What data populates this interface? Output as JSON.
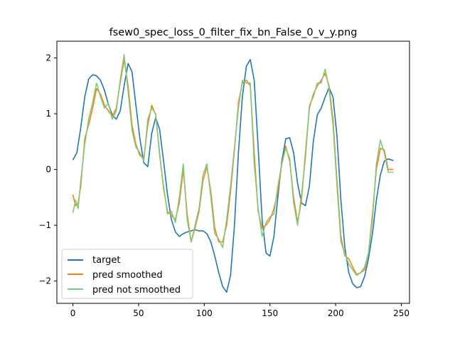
{
  "chart_data": {
    "type": "line",
    "title": "fsew0_spec_loss_0_filter_fix_bn_False_0_v_y.png",
    "xlabel": "",
    "ylabel": "",
    "xlim": [
      -12.2,
      256.2
    ],
    "ylim": [
      -2.4,
      2.3
    ],
    "xticks": [
      0,
      50,
      100,
      150,
      200,
      250
    ],
    "yticks": [
      -2,
      -1,
      0,
      1,
      2
    ],
    "grid": false,
    "legend_position": "lower left",
    "series": [
      {
        "name": "target",
        "color": "#1f77b4",
        "x": [
          0,
          3,
          6,
          9,
          12,
          15,
          18,
          21,
          24,
          27,
          30,
          33,
          36,
          39,
          42,
          45,
          48,
          51,
          54,
          57,
          60,
          63,
          66,
          69,
          72,
          75,
          78,
          81,
          84,
          87,
          90,
          93,
          96,
          99,
          102,
          105,
          108,
          111,
          114,
          117,
          120,
          123,
          126,
          129,
          132,
          135,
          138,
          141,
          144,
          147,
          150,
          153,
          156,
          159,
          162,
          165,
          168,
          171,
          174,
          177,
          180,
          183,
          186,
          189,
          192,
          195,
          198,
          201,
          204,
          207,
          210,
          213,
          216,
          219,
          222,
          225,
          228,
          231,
          234,
          237,
          240,
          244
        ],
        "y": [
          0.17,
          0.3,
          0.75,
          1.3,
          1.62,
          1.7,
          1.68,
          1.6,
          1.42,
          1.17,
          0.98,
          0.9,
          1.05,
          1.5,
          1.9,
          1.75,
          1.15,
          0.55,
          0.12,
          0.05,
          0.65,
          0.93,
          0.72,
          0.15,
          -0.45,
          -0.9,
          -1.12,
          -1.2,
          -1.15,
          -1.12,
          -1.1,
          -1.08,
          -1.1,
          -1.1,
          -1.15,
          -1.3,
          -1.55,
          -1.85,
          -2.1,
          -2.2,
          -1.9,
          -1.0,
          0.3,
          1.3,
          1.85,
          1.97,
          1.6,
          0.4,
          -0.9,
          -1.5,
          -1.55,
          -1.2,
          -0.5,
          0.15,
          0.55,
          0.57,
          0.3,
          -0.25,
          -0.6,
          -0.65,
          -0.3,
          0.5,
          0.98,
          1.1,
          1.3,
          1.47,
          1.3,
          0.6,
          -0.55,
          -1.4,
          -1.85,
          -2.05,
          -2.12,
          -2.1,
          -1.92,
          -1.6,
          -1.15,
          -0.55,
          -0.1,
          0.15,
          0.19,
          0.16
        ]
      },
      {
        "name": "pred smoothed",
        "color": "#ff7f0e",
        "x": [
          0,
          2,
          4,
          6,
          9,
          12,
          15,
          18,
          21,
          24,
          27,
          30,
          33,
          36,
          39,
          42,
          45,
          48,
          51,
          54,
          57,
          60,
          63,
          66,
          69,
          72,
          75,
          78,
          81,
          84,
          87,
          90,
          93,
          96,
          99,
          102,
          105,
          108,
          111,
          114,
          117,
          120,
          123,
          126,
          129,
          132,
          135,
          138,
          141,
          144,
          147,
          150,
          153,
          156,
          159,
          162,
          165,
          168,
          171,
          174,
          177,
          180,
          183,
          186,
          189,
          192,
          195,
          198,
          201,
          204,
          207,
          210,
          213,
          216,
          219,
          222,
          225,
          228,
          231,
          234,
          237,
          240,
          244
        ],
        "y": [
          -0.45,
          -0.65,
          -0.6,
          -0.3,
          0.55,
          0.8,
          1.1,
          1.45,
          1.35,
          1.15,
          1.05,
          0.95,
          1.1,
          1.55,
          1.97,
          1.5,
          0.8,
          0.45,
          0.25,
          0.2,
          0.8,
          1.15,
          0.98,
          0.3,
          -0.35,
          -0.75,
          -0.82,
          -0.9,
          -0.6,
          0.0,
          -0.8,
          -1.3,
          -1.05,
          -0.75,
          -0.2,
          0.05,
          -0.4,
          -1.05,
          -1.3,
          -1.3,
          -1.0,
          -0.4,
          0.35,
          1.2,
          1.55,
          1.6,
          1.5,
          0.3,
          -0.75,
          -1.05,
          -1.0,
          -0.9,
          -0.7,
          -0.4,
          0.1,
          0.42,
          0.15,
          -0.5,
          -0.95,
          -0.55,
          0.3,
          1.1,
          1.35,
          1.5,
          1.6,
          1.72,
          1.5,
          0.9,
          -0.2,
          -1.2,
          -1.55,
          -1.6,
          -1.75,
          -1.88,
          -1.85,
          -1.8,
          -1.5,
          -0.8,
          0.0,
          0.38,
          0.35,
          0.0,
          0.0
        ]
      },
      {
        "name": "pred not smoothed",
        "color": "#7fc97f",
        "x": [
          0,
          2,
          4,
          6,
          9,
          12,
          15,
          18,
          21,
          24,
          27,
          30,
          33,
          36,
          39,
          42,
          45,
          48,
          51,
          54,
          57,
          60,
          63,
          66,
          69,
          72,
          75,
          78,
          81,
          84,
          87,
          90,
          93,
          96,
          99,
          102,
          105,
          108,
          111,
          114,
          117,
          120,
          123,
          126,
          129,
          132,
          135,
          138,
          141,
          144,
          147,
          150,
          153,
          156,
          159,
          162,
          165,
          168,
          171,
          174,
          177,
          180,
          183,
          186,
          189,
          192,
          195,
          198,
          201,
          204,
          207,
          210,
          213,
          216,
          219,
          222,
          225,
          228,
          231,
          234,
          237,
          240,
          244
        ],
        "y": [
          -0.78,
          -0.55,
          -0.7,
          -0.2,
          0.45,
          0.9,
          1.2,
          1.55,
          1.3,
          1.1,
          1.2,
          0.9,
          1.05,
          1.6,
          2.06,
          1.4,
          0.7,
          0.4,
          0.3,
          0.15,
          0.9,
          1.1,
          1.0,
          0.25,
          -0.3,
          -0.8,
          -0.75,
          -0.95,
          -0.5,
          0.1,
          -0.9,
          -1.3,
          -1.0,
          -0.7,
          -0.1,
          0.1,
          -0.5,
          -1.15,
          -1.25,
          -1.4,
          -0.9,
          -0.3,
          0.4,
          1.1,
          1.6,
          1.55,
          1.55,
          0.1,
          -0.7,
          -1.2,
          -0.95,
          -0.85,
          -0.8,
          -0.3,
          0.1,
          0.38,
          0.2,
          -0.6,
          -1.0,
          -0.45,
          0.2,
          1.15,
          1.3,
          1.55,
          1.55,
          1.8,
          1.45,
          0.8,
          -0.3,
          -1.3,
          -1.5,
          -1.7,
          -1.8,
          -1.9,
          -1.85,
          -1.75,
          -1.5,
          -0.9,
          0.1,
          0.53,
          0.3,
          -0.05,
          -0.05
        ]
      }
    ]
  }
}
